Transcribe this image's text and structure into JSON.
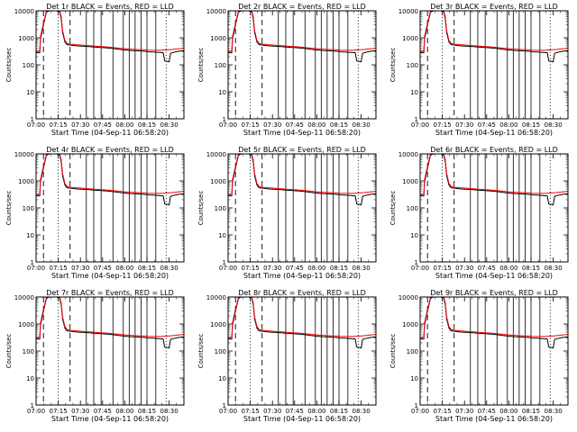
{
  "chart_data": {
    "type": "line",
    "layout": "3x3 grid",
    "panel_titles": [
      "Det 1r BLACK = Events, RED = LLD",
      "Det 2r BLACK = Events, RED = LLD",
      "Det 3r BLACK = Events, RED = LLD",
      "Det 4r BLACK = Events, RED = LLD",
      "Det 5r BLACK = Events, RED = LLD",
      "Det 6r BLACK = Events, RED = LLD",
      "Det 7r BLACK = Events, RED = LLD",
      "Det 8r BLACK = Events, RED = LLD",
      "Det 9r BLACK = Events, RED = LLD"
    ],
    "xlabel": "Start Time (04-Sep-11 06:58:20)",
    "ylabel": "Counts/sec",
    "yscale": "log",
    "ylim": [
      1,
      10000
    ],
    "y_ticks": [
      "1",
      "10",
      "100",
      "1000",
      "10000"
    ],
    "x_range_minutes": [
      0,
      100
    ],
    "x_tick_minutes": [
      0,
      15,
      30,
      45,
      60,
      75,
      90
    ],
    "x_ticks": [
      "07:00",
      "07:15",
      "07:30",
      "07:45",
      "08:00",
      "08:15",
      "08:30"
    ],
    "series": [
      {
        "name": "Events",
        "color": "#000000",
        "points": [
          [
            0,
            280
          ],
          [
            2.5,
            280
          ],
          [
            3,
            900
          ],
          [
            5,
            3000
          ],
          [
            7,
            9000
          ],
          [
            9,
            10000
          ],
          [
            14,
            10000
          ],
          [
            16,
            9000
          ],
          [
            17,
            5000
          ],
          [
            18,
            1500
          ],
          [
            19.5,
            700
          ],
          [
            21,
            560
          ],
          [
            24,
            530
          ],
          [
            28,
            500
          ],
          [
            32,
            485
          ],
          [
            36,
            470
          ],
          [
            40,
            450
          ],
          [
            44,
            435
          ],
          [
            48,
            420
          ],
          [
            52,
            400
          ],
          [
            56,
            375
          ],
          [
            60,
            355
          ],
          [
            64,
            340
          ],
          [
            68,
            330
          ],
          [
            72,
            320
          ],
          [
            76,
            305
          ],
          [
            80,
            295
          ],
          [
            84,
            285
          ],
          [
            86,
            280
          ],
          [
            87,
            140
          ],
          [
            90,
            130
          ],
          [
            91,
            270
          ],
          [
            94,
            300
          ],
          [
            97,
            320
          ],
          [
            100,
            330
          ]
        ]
      },
      {
        "name": "LLD",
        "color": "#ff0000",
        "points": [
          [
            0,
            320
          ],
          [
            2.5,
            320
          ],
          [
            3,
            1100
          ],
          [
            5,
            3500
          ],
          [
            7,
            10000
          ],
          [
            16,
            10000
          ],
          [
            17,
            6000
          ],
          [
            18,
            1800
          ],
          [
            19.5,
            800
          ],
          [
            21,
            620
          ],
          [
            24,
            580
          ],
          [
            28,
            550
          ],
          [
            32,
            530
          ],
          [
            36,
            510
          ],
          [
            40,
            490
          ],
          [
            44,
            475
          ],
          [
            48,
            460
          ],
          [
            52,
            440
          ],
          [
            56,
            415
          ],
          [
            60,
            395
          ],
          [
            64,
            380
          ],
          [
            68,
            370
          ],
          [
            72,
            360
          ],
          [
            76,
            350
          ],
          [
            80,
            345
          ],
          [
            84,
            345
          ],
          [
            88,
            355
          ],
          [
            92,
            370
          ],
          [
            96,
            390
          ],
          [
            100,
            410
          ]
        ]
      }
    ],
    "dashed_vlines_minutes": [
      5,
      23
    ],
    "dotted_vlines_minutes": [
      15,
      88
    ],
    "solid_vlines_minutes": [
      34,
      39,
      44,
      52,
      59,
      63,
      67,
      71,
      75,
      81
    ]
  }
}
